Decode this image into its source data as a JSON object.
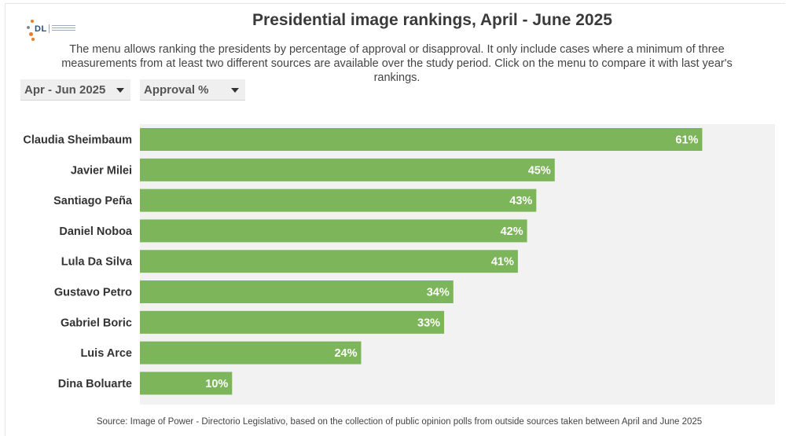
{
  "header": {
    "title": "Presidential image rankings, April - June 2025",
    "description": "The menu allows ranking the presidents by percentage of approval or disapproval. It only include cases where a minimum of three measurements from at least two different sources are available over the study period. Click on the menu to compare it with last year's rankings."
  },
  "logo": {
    "text": "DL"
  },
  "controls": {
    "period": "Apr - Jun 2025",
    "metric": "Approval %"
  },
  "colors": {
    "bar": "#7cb55a",
    "plot_background": "#f2f2f2",
    "label_text": "#ffffff",
    "category_text": "#333333",
    "logo_orange": "#e87d2a",
    "logo_grey": "#8a8a8a"
  },
  "chart_data": {
    "type": "bar",
    "orientation": "horizontal",
    "categories": [
      "Claudia Sheimbaum",
      "Javier Milei",
      "Santiago Peña",
      "Daniel Noboa",
      "Lula Da Silva",
      "Gustavo Petro",
      "Gabriel Boric",
      "Luis Arce",
      "Dina Boluarte"
    ],
    "values": [
      61,
      45,
      43,
      42,
      41,
      34,
      33,
      24,
      10
    ],
    "data_labels": [
      "61%",
      "45%",
      "43%",
      "42%",
      "41%",
      "34%",
      "33%",
      "24%",
      "10%"
    ],
    "xlim": [
      0,
      65
    ],
    "grid": false
  },
  "footer": {
    "source": "Source: Image of Power - Directorio Legislativo, based on the collection of public opinion polls from outside sources taken between April and June 2025"
  }
}
